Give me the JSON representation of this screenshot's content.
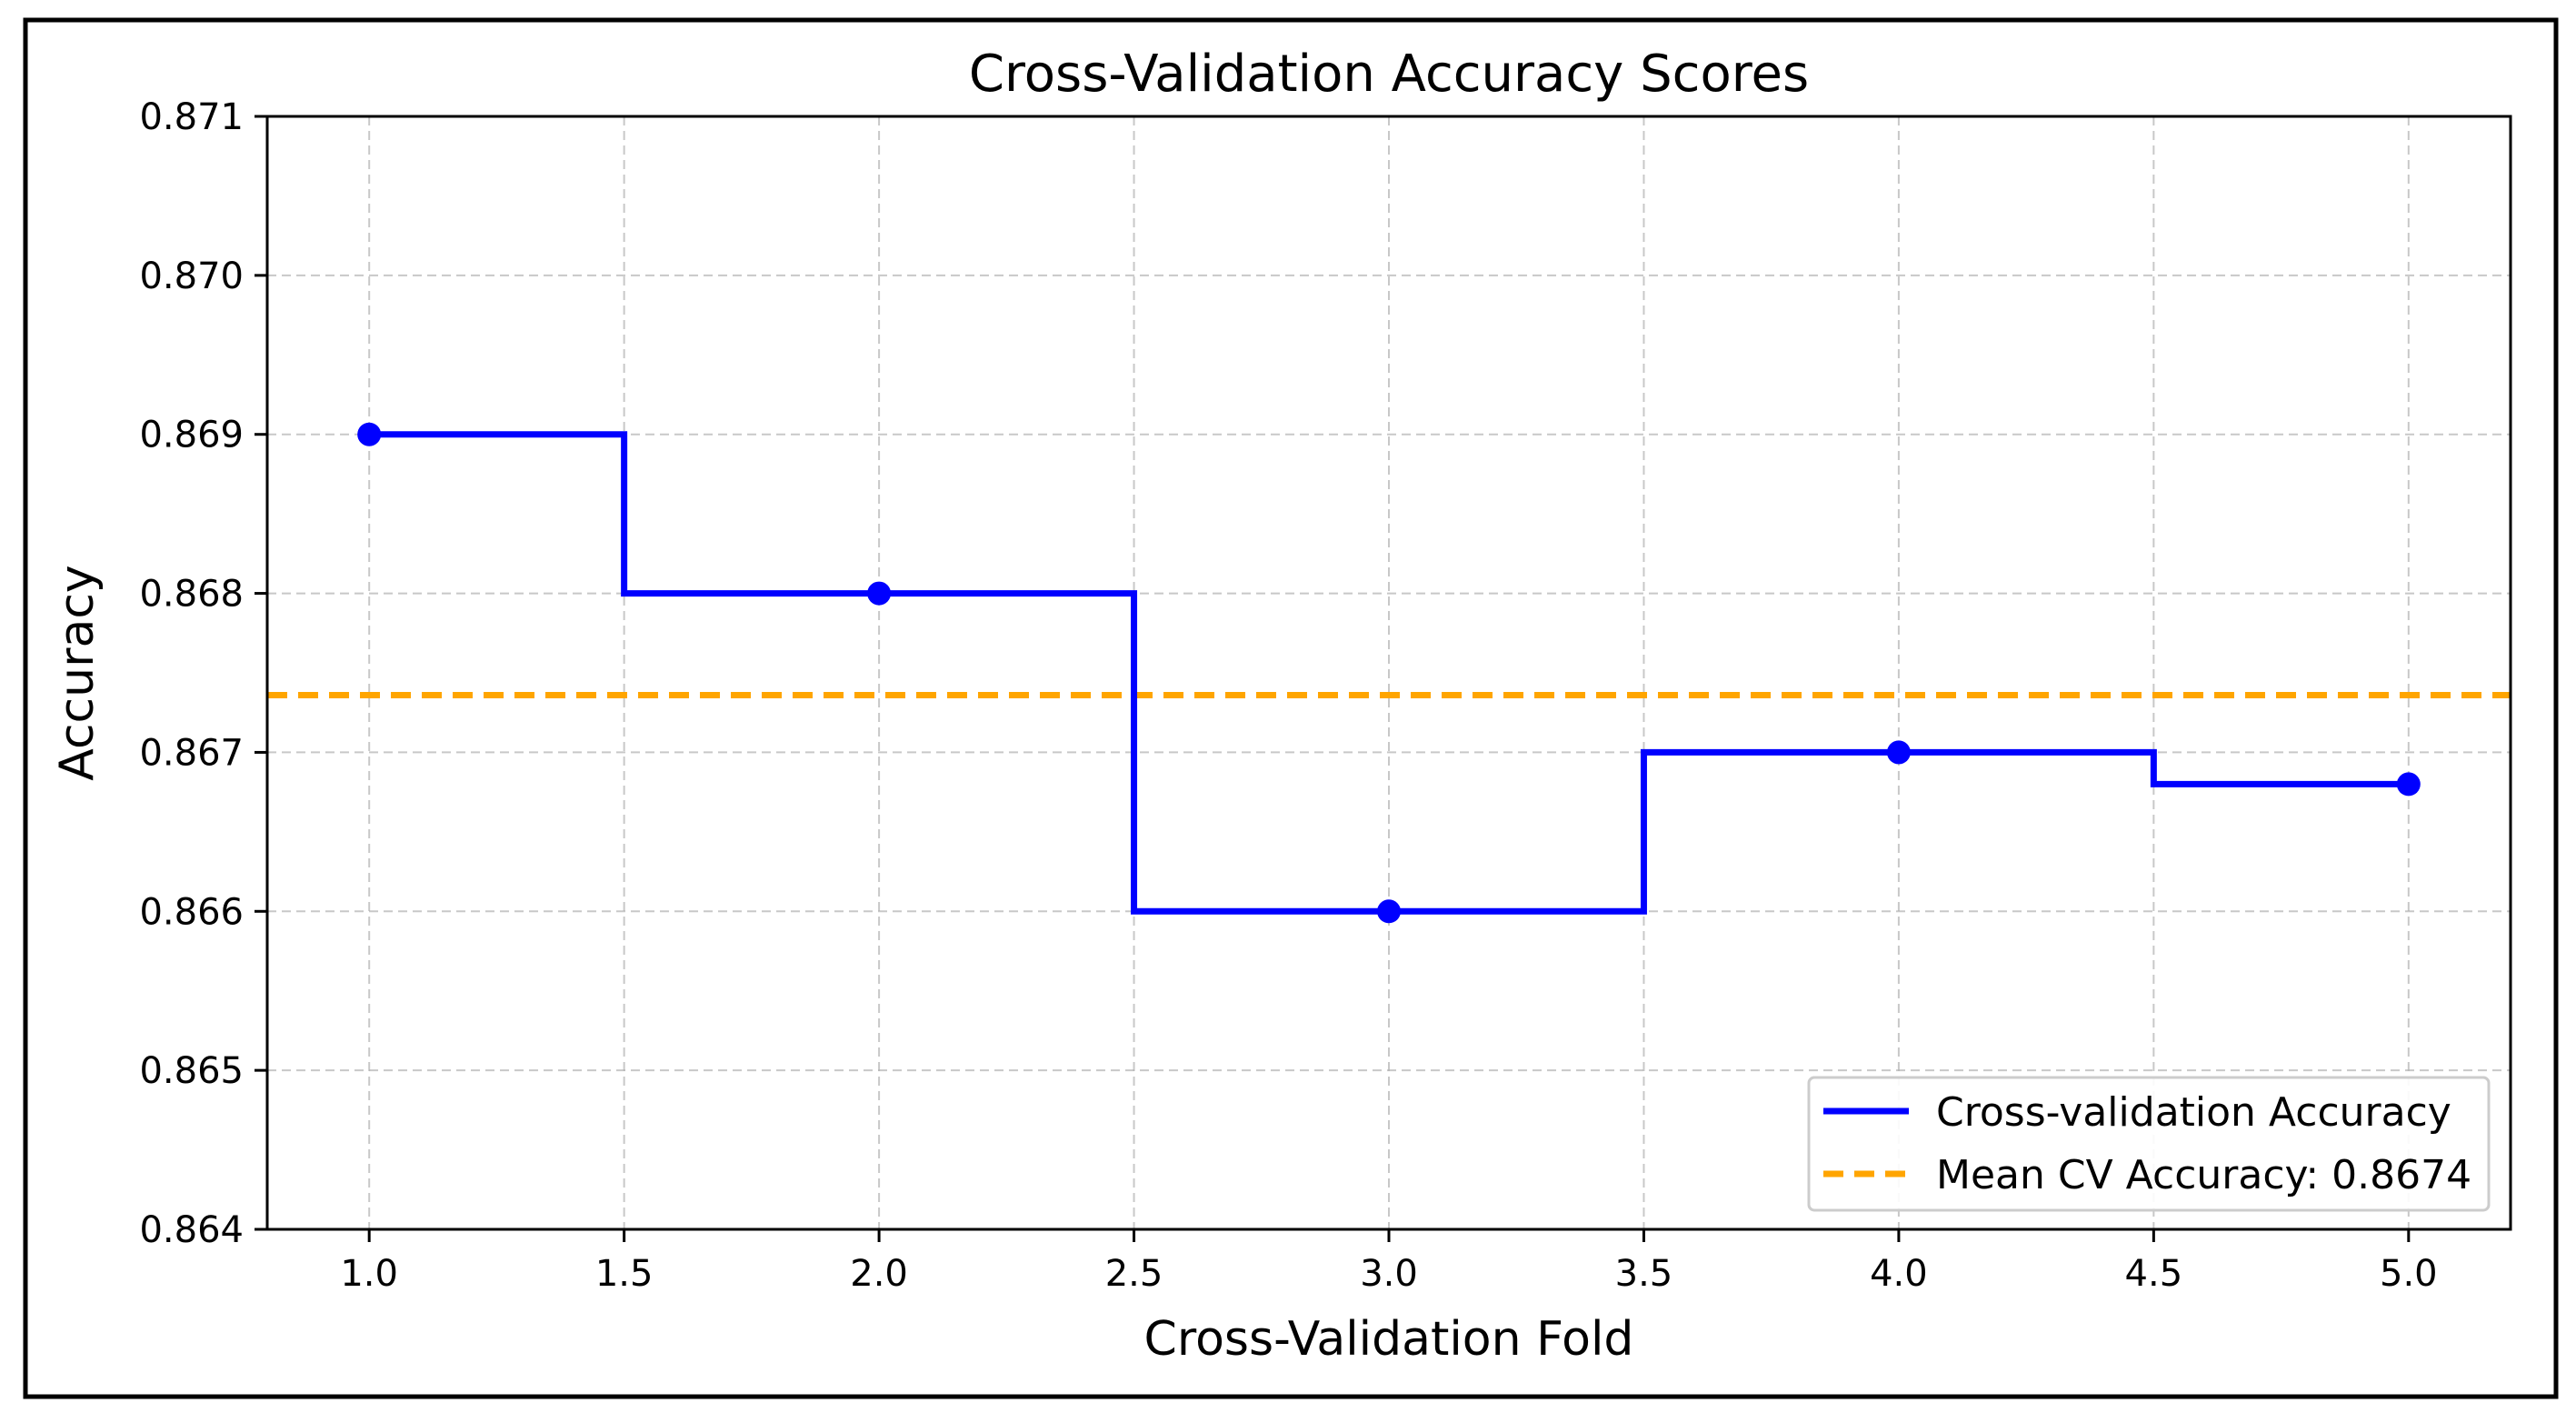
{
  "chart_data": {
    "type": "line",
    "title": "Cross-Validation Accuracy Scores",
    "xlabel": "Cross-Validation Fold",
    "ylabel": "Accuracy",
    "xlim": [
      0.8,
      5.2
    ],
    "ylim": [
      0.864,
      0.871
    ],
    "xticks": [
      1.0,
      1.5,
      2.0,
      2.5,
      3.0,
      3.5,
      4.0,
      4.5,
      5.0
    ],
    "xtick_labels": [
      "1.0",
      "1.5",
      "2.0",
      "2.5",
      "3.0",
      "3.5",
      "4.0",
      "4.5",
      "5.0"
    ],
    "yticks": [
      0.864,
      0.865,
      0.866,
      0.867,
      0.868,
      0.869,
      0.87,
      0.871
    ],
    "ytick_labels": [
      "0.864",
      "0.865",
      "0.866",
      "0.867",
      "0.868",
      "0.869",
      "0.870",
      "0.871"
    ],
    "grid": true,
    "legend_position": "bottom-right",
    "series": [
      {
        "name": "Cross-validation Accuracy",
        "color": "#0000ff",
        "style": "step-mid",
        "marker": "circle",
        "x": [
          1,
          2,
          3,
          4,
          5
        ],
        "values": [
          0.869,
          0.868,
          0.866,
          0.867,
          0.8668
        ]
      }
    ],
    "reference_lines": [
      {
        "name": "Mean CV Accuracy: 0.8674",
        "orientation": "horizontal",
        "value": 0.86736,
        "color": "#ffa500",
        "style": "dashed"
      }
    ]
  }
}
